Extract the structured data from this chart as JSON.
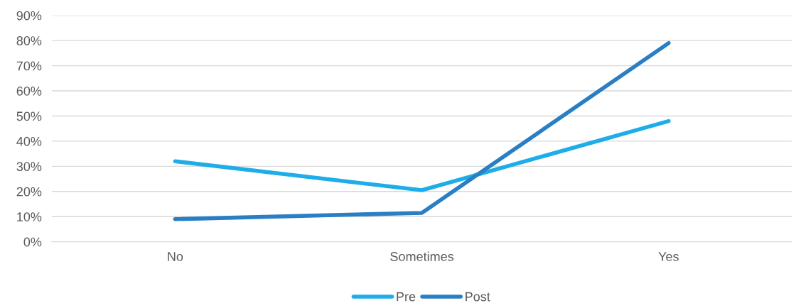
{
  "chart_data": {
    "type": "line",
    "categories": [
      "No",
      "Sometimes",
      "Yes"
    ],
    "series": [
      {
        "name": "Pre",
        "color": "#1fadea",
        "values": [
          32,
          20.5,
          48
        ]
      },
      {
        "name": "Post",
        "color": "#2a7fc4",
        "values": [
          9,
          11.5,
          79
        ]
      }
    ],
    "ylim": [
      0,
      90
    ],
    "yticks": [
      {
        "value": 0,
        "label": "0%"
      },
      {
        "value": 10,
        "label": "10%"
      },
      {
        "value": 20,
        "label": "20%"
      },
      {
        "value": 30,
        "label": "30%"
      },
      {
        "value": 40,
        "label": "40%"
      },
      {
        "value": 50,
        "label": "50%"
      },
      {
        "value": 60,
        "label": "60%"
      },
      {
        "value": 70,
        "label": "70%"
      },
      {
        "value": 80,
        "label": "80%"
      },
      {
        "value": 90,
        "label": "90%"
      }
    ],
    "grid": "y",
    "legend": "bottom",
    "marker": "none",
    "line_style": "solid"
  }
}
